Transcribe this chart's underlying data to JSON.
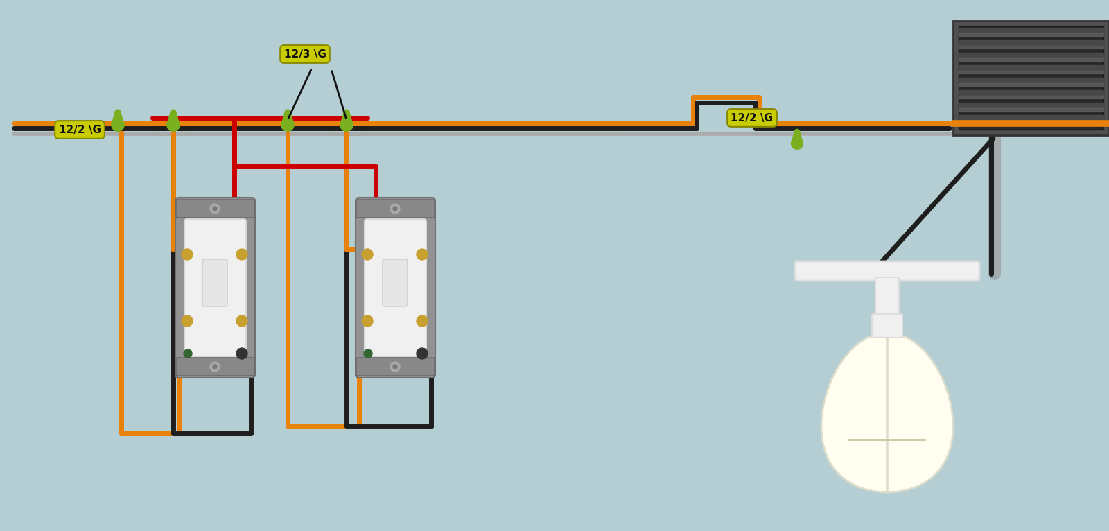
{
  "bg_color": "#b5ced3",
  "wire_orange": "#e8820a",
  "wire_black": "#1e1e1e",
  "wire_red": "#cc0000",
  "wire_gray": "#aaaaaa",
  "wire_lw": 5,
  "label_bg": "#c8cc00",
  "label_text": "#111111",
  "label1": "12/2 \\G",
  "label2": "12/3 \\G",
  "label3": "12/2 \\G",
  "nut_green": "#7ab020",
  "switch_body": "#909090",
  "switch_plate": "#f2f2f2",
  "screw_gold": "#c8a030",
  "screw_silver": "#b0b0b0",
  "box_dark": "#3a3a3a",
  "box_mid": "#585858"
}
